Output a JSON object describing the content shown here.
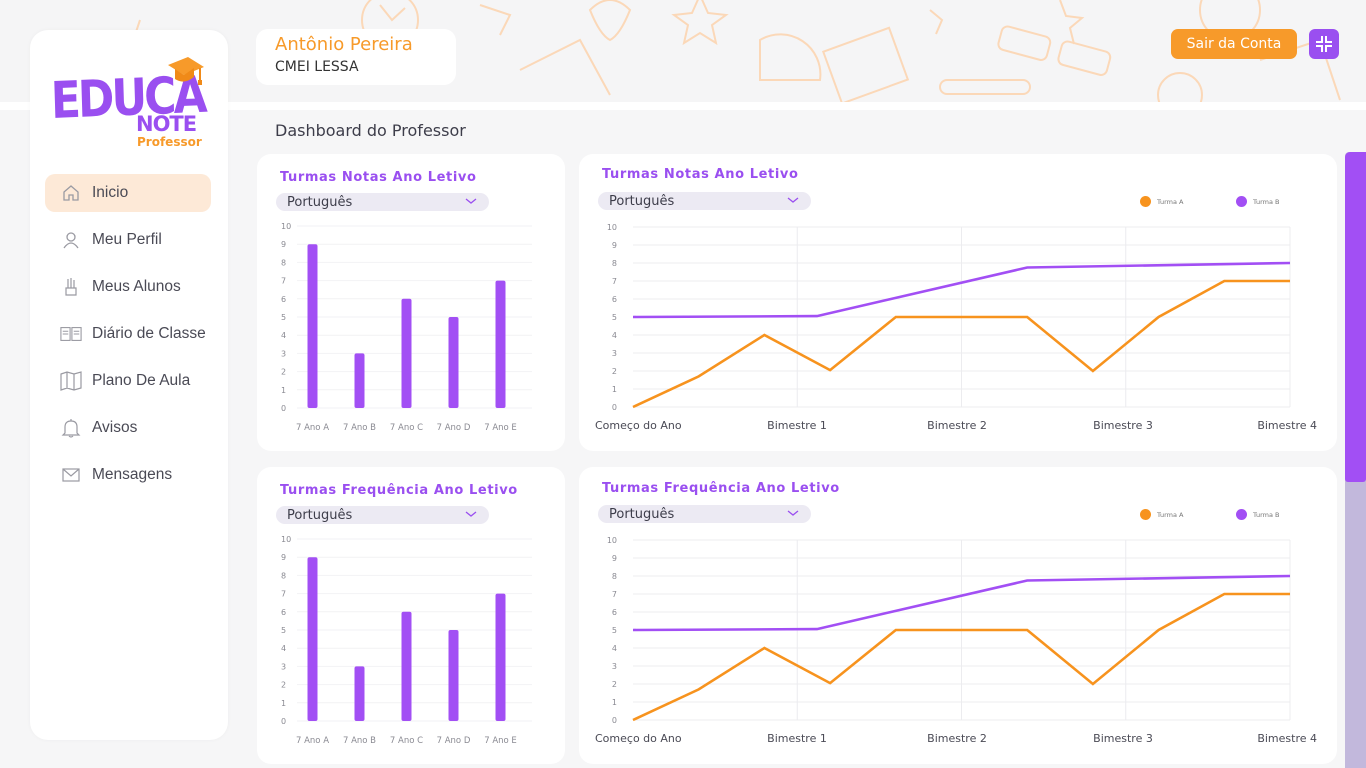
{
  "app": {
    "logo": {
      "line1": "EDUCA",
      "line2": "NOTE",
      "line3": "Professor"
    },
    "colors": {
      "primary": "#9a4ff0",
      "accent": "#f79a2a",
      "active_bg": "#fde9d7"
    }
  },
  "header": {
    "user_name": "Antônio Pereira",
    "school": "CMEI LESSA",
    "logout_label": "Sair da Conta",
    "collapse_icon": "collapse-arrows-icon"
  },
  "sidebar": {
    "items": [
      {
        "label": "Inicio",
        "icon": "home-icon",
        "active": true
      },
      {
        "label": "Meu Perfil",
        "icon": "user-icon",
        "active": false
      },
      {
        "label": "Meus Alunos",
        "icon": "pencil-cup-icon",
        "active": false
      },
      {
        "label": "Diário de Classe",
        "icon": "open-book-icon",
        "active": false
      },
      {
        "label": "Plano De Aula",
        "icon": "map-icon",
        "active": false
      },
      {
        "label": "Avisos",
        "icon": "bell-icon",
        "active": false
      },
      {
        "label": "Mensagens",
        "icon": "mail-icon",
        "active": false
      }
    ]
  },
  "main": {
    "title": "Dashboard do Professor",
    "cards": [
      {
        "title": "Turmas Notas Ano Letivo",
        "select_value": "Português"
      },
      {
        "title": "Turmas Notas Ano Letivo",
        "select_value": "Português"
      },
      {
        "title": "Turmas Frequência Ano Letivo",
        "select_value": "Português"
      },
      {
        "title": "Turmas Frequência Ano Letivo",
        "select_value": "Português"
      }
    ]
  },
  "chart_data": [
    {
      "type": "bar",
      "title": "Turmas Notas Ano Letivo",
      "categories": [
        "7 Ano A",
        "7 Ano B",
        "7 Ano C",
        "7 Ano D",
        "7 Ano E"
      ],
      "values": [
        9,
        3,
        6,
        5,
        7
      ],
      "yticks": [
        0,
        1,
        2,
        3,
        4,
        5,
        6,
        7,
        8,
        9,
        10
      ],
      "ylim": [
        0,
        10
      ],
      "color": "#a24ff4",
      "grid": true
    },
    {
      "type": "line",
      "title": "Turmas Notas Ano Letivo",
      "xticks": [
        "Começo do Ano",
        "Bimestre 1",
        "Bimestre 2",
        "Bimestre 3",
        "Bimestre 4"
      ],
      "xlim": [
        0,
        4
      ],
      "ylim": [
        0,
        10
      ],
      "yticks": [
        0,
        1,
        2,
        3,
        4,
        5,
        6,
        7,
        8,
        9,
        10
      ],
      "legend_position": "top-right",
      "grid": true,
      "series": [
        {
          "name": "Turma A",
          "color": "#f7931e",
          "points": [
            [
              0,
              0
            ],
            [
              0.4,
              1.7
            ],
            [
              0.8,
              4
            ],
            [
              1.2,
              2.05
            ],
            [
              1.6,
              5
            ],
            [
              2.4,
              5
            ],
            [
              2.8,
              2
            ],
            [
              3.2,
              5
            ],
            [
              3.6,
              7
            ],
            [
              4,
              7
            ]
          ]
        },
        {
          "name": "Turma B",
          "color": "#a24ff4",
          "points": [
            [
              0,
              5
            ],
            [
              1.12,
              5.05
            ],
            [
              2.4,
              7.75
            ],
            [
              4,
              8
            ]
          ]
        }
      ]
    },
    {
      "type": "bar",
      "title": "Turmas Frequência Ano Letivo",
      "categories": [
        "7 Ano A",
        "7 Ano B",
        "7 Ano C",
        "7 Ano D",
        "7 Ano E"
      ],
      "values": [
        9,
        3,
        6,
        5,
        7
      ],
      "yticks": [
        0,
        1,
        2,
        3,
        4,
        5,
        6,
        7,
        8,
        9,
        10
      ],
      "ylim": [
        0,
        10
      ],
      "color": "#a24ff4",
      "grid": true
    },
    {
      "type": "line",
      "title": "Turmas Frequência Ano Letivo",
      "xticks": [
        "Começo do Ano",
        "Bimestre 1",
        "Bimestre 2",
        "Bimestre 3",
        "Bimestre 4"
      ],
      "xlim": [
        0,
        4
      ],
      "ylim": [
        0,
        10
      ],
      "yticks": [
        0,
        1,
        2,
        3,
        4,
        5,
        6,
        7,
        8,
        9,
        10
      ],
      "legend_position": "top-right",
      "grid": true,
      "series": [
        {
          "name": "Turma A",
          "color": "#f7931e",
          "points": [
            [
              0,
              0
            ],
            [
              0.4,
              1.7
            ],
            [
              0.8,
              4
            ],
            [
              1.2,
              2.05
            ],
            [
              1.6,
              5
            ],
            [
              2.4,
              5
            ],
            [
              2.8,
              2
            ],
            [
              3.2,
              5
            ],
            [
              3.6,
              7
            ],
            [
              4,
              7
            ]
          ]
        },
        {
          "name": "Turma B",
          "color": "#a24ff4",
          "points": [
            [
              0,
              5
            ],
            [
              1.12,
              5.05
            ],
            [
              2.4,
              7.75
            ],
            [
              4,
              8
            ]
          ]
        }
      ]
    }
  ]
}
